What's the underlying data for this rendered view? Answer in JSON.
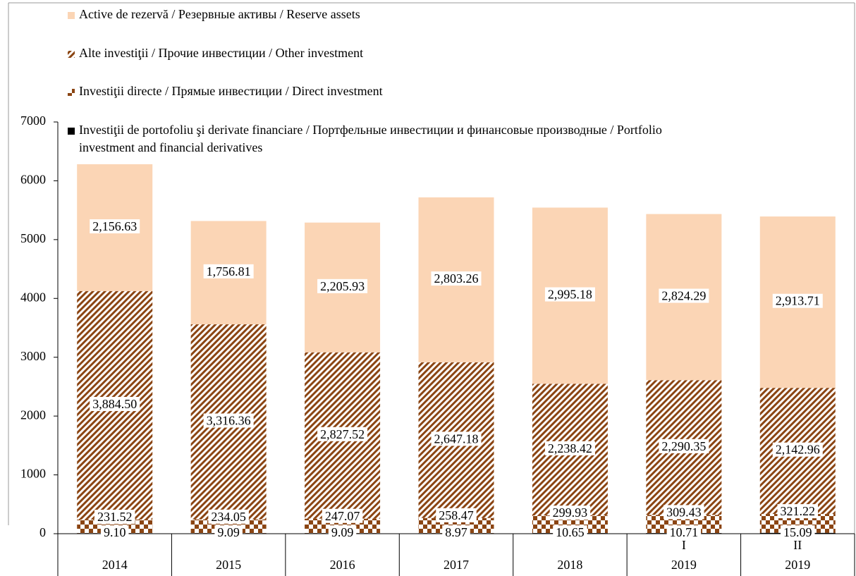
{
  "chart_data": {
    "type": "stacked_bar",
    "categories": [
      "2014",
      "2015",
      "2016",
      "2017",
      "2018",
      "2019",
      "2019"
    ],
    "subcategories": [
      null,
      null,
      null,
      null,
      null,
      "I",
      "II"
    ],
    "series": [
      {
        "name": "Investiţii de portofoliu şi derivate financiare / Портфельные инвестиции и финансовые производные / Portfolio investment and financial derivatives",
        "color": "#000000",
        "pattern": "solid",
        "values": [
          9.1,
          9.09,
          9.09,
          8.97,
          10.65,
          10.71,
          15.09
        ],
        "value_labels": [
          "9.10",
          "9.09",
          "9.09",
          "8.97",
          "10.65",
          "10.71",
          "15.09"
        ]
      },
      {
        "name": "Investiţii directe /  Прямые инвестиции / Direct investment",
        "color": "#8b4513",
        "pattern": "checker",
        "values": [
          231.52,
          234.05,
          247.07,
          258.47,
          299.93,
          309.43,
          321.22
        ],
        "value_labels": [
          "231.52",
          "234.05",
          "247.07",
          "258.47",
          "299.93",
          "309.43",
          "321.22"
        ]
      },
      {
        "name": "Alte investiţii / Прочие инвестиции / Other investment",
        "color": "#8b4513",
        "pattern": "hatch",
        "values": [
          3884.5,
          3316.36,
          2827.52,
          2647.18,
          2238.42,
          2290.35,
          2142.96
        ],
        "value_labels": [
          "3,884.50",
          "3,316.36",
          "2,827.52",
          "2,647.18",
          "2,238.42",
          "2,290.35",
          "2,142.96"
        ]
      },
      {
        "name": "Active de rezervă / Резервные активы / Reserve assets",
        "color": "#fbd5b5",
        "pattern": "solid",
        "values": [
          2156.63,
          1756.81,
          2205.93,
          2803.26,
          2995.18,
          2824.29,
          2913.71
        ],
        "value_labels": [
          "2,156.63",
          "1,756.81",
          "2,205.93",
          "2,803.26",
          "2,995.18",
          "2,824.29",
          "2,913.71"
        ]
      }
    ],
    "ylim": [
      0,
      7000
    ],
    "yticks": [
      0,
      1000,
      2000,
      3000,
      4000,
      5000,
      6000,
      7000
    ],
    "legend": "top-left",
    "grid": false
  }
}
